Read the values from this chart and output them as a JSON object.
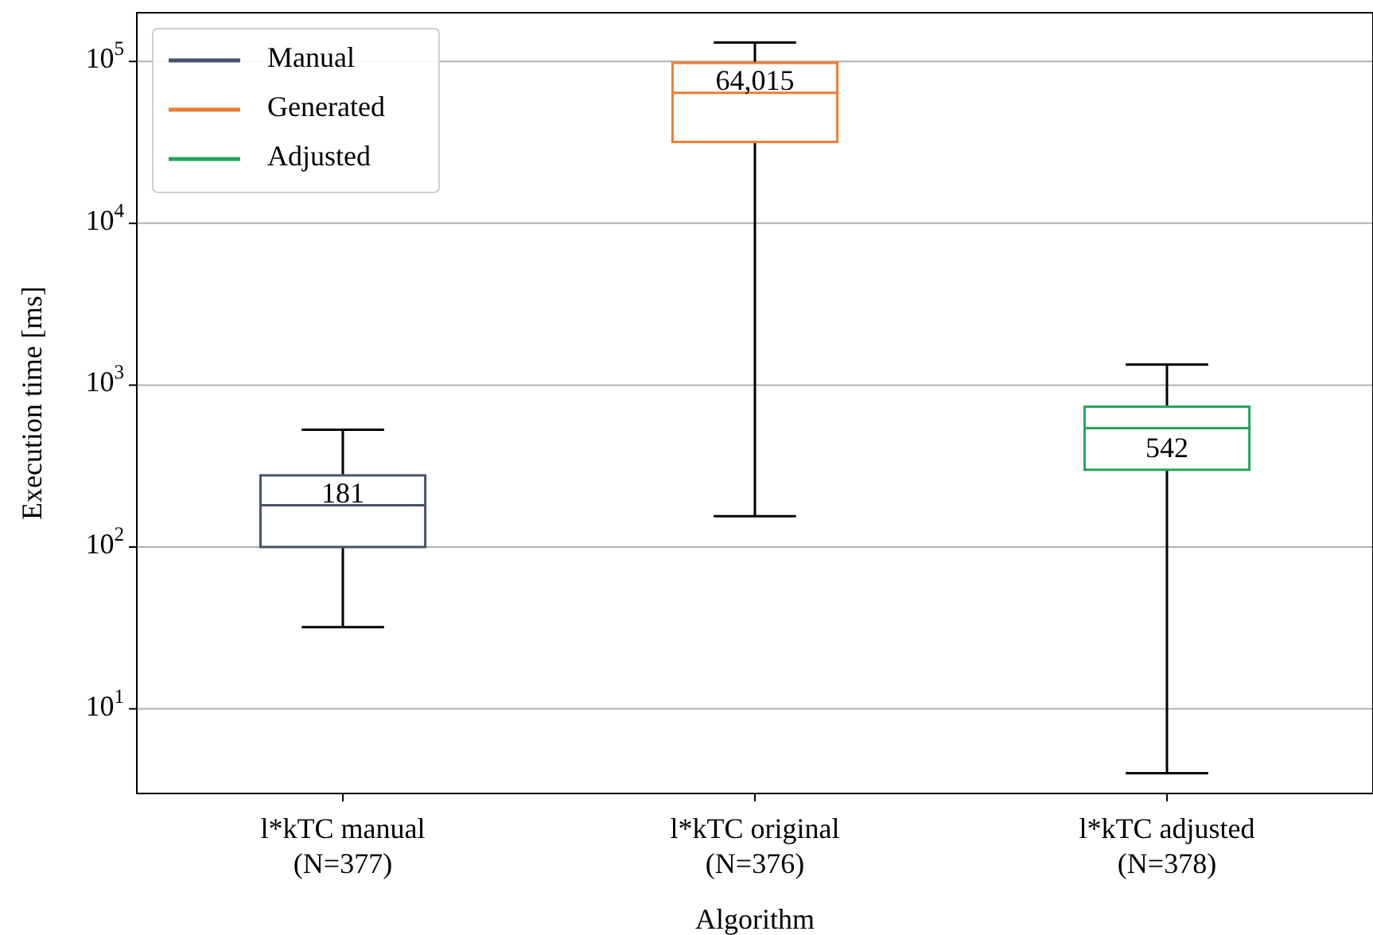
{
  "chart_data": {
    "type": "box",
    "xlabel": "Algorithm",
    "ylabel": "Execution time [ms]",
    "categories": [
      "l*kTC manual\n(N=377)",
      "l*kTC original\n(N=376)",
      "l*kTC adjusted\n(N=378)"
    ],
    "series": [
      {
        "name": "Manual",
        "color": "#44546a",
        "boxes": [
          {
            "low": 32,
            "q1": 100,
            "median": 181,
            "q3": 277,
            "high": 530
          },
          null,
          null
        ],
        "value_labels": [
          "181",
          null,
          null
        ]
      },
      {
        "name": "Generated",
        "color": "#ed7d31",
        "boxes": [
          null,
          {
            "low": 155,
            "q1": 31800,
            "median": 64015,
            "q3": 98000,
            "high": 131000
          },
          null
        ],
        "value_labels": [
          null,
          "64,015",
          null
        ]
      },
      {
        "name": "Adjusted",
        "color": "#27a35a",
        "boxes": [
          null,
          null,
          {
            "low": 4,
            "q1": 300,
            "median": 542,
            "q3": 736,
            "high": 1340
          }
        ],
        "value_labels": [
          null,
          null,
          "542"
        ]
      }
    ],
    "log": "y",
    "ylim": [
      3,
      200000
    ],
    "yticks": [
      {
        "value": 10,
        "label": "10$^{1}$"
      },
      {
        "value": 100,
        "label": "10$^{2}$"
      },
      {
        "value": 1000,
        "label": "10$^{3}$"
      },
      {
        "value": 10000,
        "label": "10$^{4}$"
      },
      {
        "value": 100000,
        "label": "10$^{5}$"
      }
    ],
    "grid": "y",
    "legend": "top left"
  }
}
